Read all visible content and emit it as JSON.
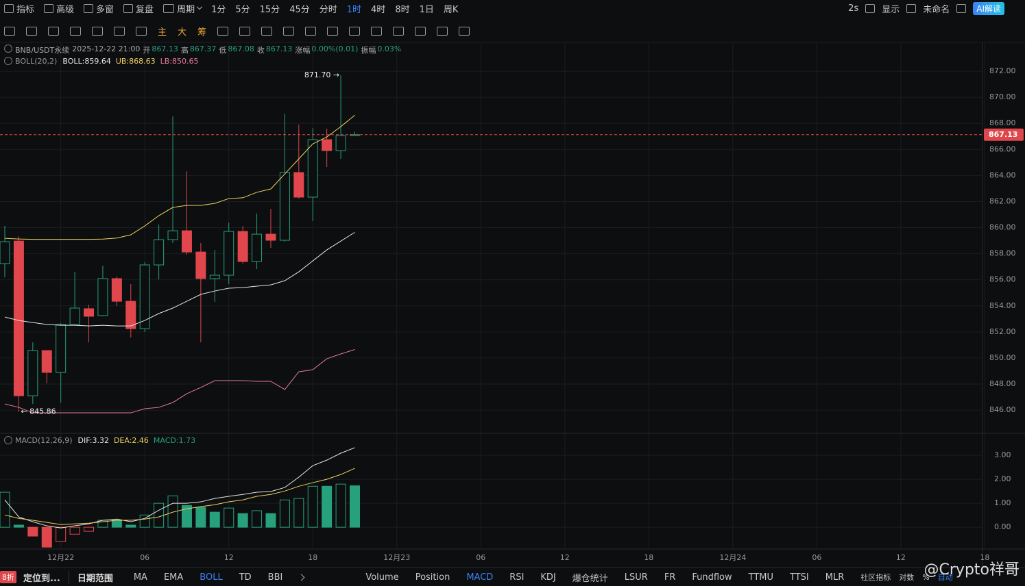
{
  "toolbar": {
    "left": [
      "指标",
      "高级",
      "多窗",
      "复盘"
    ],
    "period": "周期",
    "timeframes": [
      "1分",
      "5分",
      "15分",
      "45分",
      "分时",
      {
        "label": "1时",
        "active": true
      },
      "4时",
      "8时",
      "1日",
      "周K"
    ],
    "right": [
      "2s",
      "显示",
      "未命名"
    ],
    "ai": "AI解读"
  },
  "drawing_tools": {
    "labels": [
      "主",
      "大",
      "筹"
    ]
  },
  "info_bar": {
    "symbol": "BNB/USDT永续",
    "time": "2025-12-22 21:00",
    "open_label": "开",
    "high_label": "高",
    "low_label": "低",
    "close_label": "收",
    "change_label": "涨幅",
    "change": "0.00%(0.01)",
    "amplitude_label": "振幅",
    "amplitude": "0.03%"
  },
  "chart_data": {
    "type": "candlestick",
    "open": [
      857.24,
      858.97,
      847.1,
      850.57,
      848.89,
      852.57,
      853.78,
      853.25,
      856.09,
      854.35,
      852.25,
      857.14,
      859.08,
      859.76,
      858.13,
      856.09,
      856.35,
      859.71,
      857.4,
      859.5,
      859.03,
      864.23,
      862.34,
      866.75,
      865.91,
      867.13
    ],
    "high": [
      860.13,
      859.34,
      851.2,
      850.57,
      852.67,
      856.61,
      854.09,
      857.08,
      856.25,
      855.67,
      857.35,
      860.24,
      868.53,
      864.33,
      858.81,
      858.29,
      860.39,
      860.13,
      861.08,
      861.44,
      868.74,
      867.9,
      867.64,
      867.59,
      871.7,
      867.37
    ],
    "low": [
      856.19,
      845.86,
      846.47,
      848.05,
      846.58,
      852.51,
      851.2,
      853.2,
      853.98,
      851.57,
      851.99,
      856.03,
      858.82,
      857.92,
      851.2,
      854.3,
      855.67,
      857.24,
      856.82,
      858.45,
      858.92,
      862.23,
      860.5,
      864.65,
      865.28,
      867.08
    ],
    "close": [
      858.92,
      847.1,
      850.57,
      848.89,
      852.57,
      853.83,
      853.2,
      856.09,
      854.35,
      852.25,
      857.14,
      859.08,
      859.76,
      858.13,
      856.09,
      856.35,
      859.71,
      857.4,
      859.5,
      859.03,
      864.23,
      862.34,
      866.75,
      865.91,
      867.06,
      867.13
    ],
    "colors": {
      "up": "#26a17b",
      "down": "#e0474c"
    },
    "ylim": [
      844.27,
      874.21
    ],
    "yticks": [
      {
        "value": 846,
        "label": "846.00"
      },
      {
        "value": 848,
        "label": "848.00"
      },
      {
        "value": 850,
        "label": "850.00"
      },
      {
        "value": 852,
        "label": "852.00"
      },
      {
        "value": 854,
        "label": "854.00"
      },
      {
        "value": 856,
        "label": "856.00"
      },
      {
        "value": 858,
        "label": "858.00"
      },
      {
        "value": 860,
        "label": "860.00"
      },
      {
        "value": 862,
        "label": "862.00"
      },
      {
        "value": 864,
        "label": "864.00"
      },
      {
        "value": 866,
        "label": "866.00"
      },
      {
        "value": 868,
        "label": "868.00"
      },
      {
        "value": 870,
        "label": "870.00"
      },
      {
        "value": 872,
        "label": "872.00"
      }
    ],
    "xticks": [
      "12月22",
      "06",
      "12",
      "18",
      "12月23",
      "06",
      "12",
      "18",
      "12月24",
      "06",
      "12",
      "18"
    ],
    "max_label": "871.70 →",
    "min_label": "← 845.86",
    "boll": {
      "title": "BOLL(20,2)",
      "series": [
        {
          "name": "BOLL:",
          "color": "#e6e6e6",
          "values": [
            853.14,
            852.88,
            852.72,
            852.57,
            852.51,
            852.51,
            852.46,
            852.51,
            852.46,
            852.46,
            852.88,
            853.41,
            853.83,
            854.35,
            854.88,
            855.14,
            855.35,
            855.4,
            855.51,
            855.61,
            855.93,
            856.61,
            857.45,
            858.29,
            858.97,
            859.64
          ]
        },
        {
          "name": "UB:",
          "color": "#f0d264",
          "values": [
            859.18,
            859.13,
            859.1,
            859.1,
            859.1,
            859.1,
            859.1,
            859.12,
            859.2,
            859.45,
            860.13,
            860.92,
            861.55,
            861.71,
            861.71,
            861.86,
            862.23,
            862.29,
            862.71,
            862.97,
            864.12,
            865.28,
            866.43,
            866.96,
            867.75,
            868.63
          ]
        },
        {
          "name": "LB:",
          "color": "#e87a9a",
          "values": [
            846.47,
            846.21,
            845.79,
            845.79,
            845.79,
            845.79,
            845.79,
            845.79,
            845.79,
            845.79,
            846.11,
            846.21,
            846.58,
            847.26,
            847.74,
            848.26,
            848.26,
            848.26,
            848.21,
            848.21,
            847.58,
            848.94,
            849.1,
            849.94,
            850.31,
            850.65
          ]
        }
      ]
    },
    "macd": {
      "title": "MACD(12,26,9)",
      "ylim": [
        -0.91,
        3.89
      ],
      "yticks": [
        {
          "value": 0,
          "label": "0.00"
        },
        {
          "value": 1,
          "label": "1.00"
        },
        {
          "value": 2,
          "label": "2.00"
        },
        {
          "value": 3,
          "label": "3.00"
        }
      ],
      "histogram": {
        "name": "MACD:",
        "color": "#26a17b",
        "down_color": "#e0474c",
        "values": [
          1.46,
          0.09,
          -0.37,
          -0.83,
          -0.6,
          -0.29,
          -0.17,
          0.29,
          0.29,
          0.09,
          0.51,
          1.0,
          1.31,
          0.91,
          0.83,
          0.63,
          0.8,
          0.57,
          0.69,
          0.57,
          1.14,
          1.2,
          1.71,
          1.71,
          1.8,
          1.73
        ]
      },
      "lines": [
        {
          "name": "DIF:",
          "color": "#e6e6e6",
          "values": [
            1.14,
            0.43,
            0.23,
            0.06,
            -0.03,
            0.06,
            0.14,
            0.29,
            0.34,
            0.23,
            0.37,
            0.71,
            1.0,
            1.0,
            1.06,
            1.2,
            1.29,
            1.37,
            1.46,
            1.49,
            1.66,
            2.09,
            2.57,
            2.8,
            3.09,
            3.32
          ]
        },
        {
          "name": "DEA:",
          "color": "#f0d264",
          "values": [
            0.51,
            0.37,
            0.29,
            0.2,
            0.11,
            0.14,
            0.17,
            0.23,
            0.29,
            0.29,
            0.34,
            0.43,
            0.63,
            0.77,
            0.86,
            0.94,
            1.06,
            1.14,
            1.29,
            1.37,
            1.51,
            1.71,
            1.86,
            2.0,
            2.2,
            2.46
          ]
        }
      ]
    }
  },
  "bottom_bar": {
    "badge": "8折",
    "locate": "定位到...",
    "date_range": "日期范围",
    "main_indicators": [
      "MA",
      "EMA",
      {
        "label": "BOLL",
        "active": true
      },
      "TD",
      "BBI"
    ],
    "sub_indicators": [
      "Volume",
      "Position",
      {
        "label": "MACD",
        "active": true
      },
      "RSI",
      "KDJ",
      "爆仓统计",
      "LSUR",
      "FR",
      "Fundflow",
      "TTMU",
      "TTSI",
      "MLR"
    ],
    "right": [
      "社区指标",
      "对数",
      "%",
      {
        "label": "自动",
        "active": true
      }
    ]
  },
  "watermark": "@Crypto祥哥"
}
